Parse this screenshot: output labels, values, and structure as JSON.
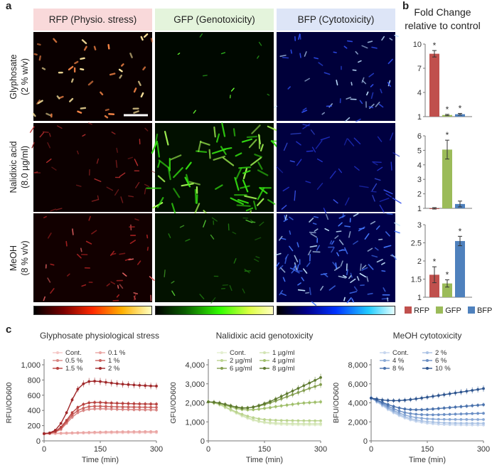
{
  "panels": {
    "a": "a",
    "b": "b",
    "c": "c"
  },
  "columns": [
    {
      "label": "RFP (Physio. stress)",
      "bg": "#f9d9da",
      "color": "#ff4444"
    },
    {
      "label": "GFP (Genotoxicity)",
      "bg": "#e4f4dc",
      "color": "#66ff33"
    },
    {
      "label": "BFP (Cytotoxicity)",
      "bg": "#dde5f7",
      "color": "#3355ff"
    }
  ],
  "rows": [
    {
      "label_line1": "Glyphosate",
      "label_line2": "(2 % w/v)"
    },
    {
      "label_line1": "Nalidixic acid",
      "label_line2": "(8.0 µg/ml)"
    },
    {
      "label_line1": "MeOH",
      "label_line2": "(8 % v/v)"
    }
  ],
  "fold_change": {
    "title_line1": "Fold Change",
    "title_line2": "relative to control",
    "legend": [
      "RFP",
      "GFP",
      "BFP"
    ],
    "colors": {
      "RFP": "#c0504d",
      "GFP": "#9bbb59",
      "BFP": "#4f81bd"
    }
  },
  "line_panels": {
    "y_labels": [
      "RFU/OD600",
      "GFU/OD600",
      "BFU/OD600"
    ]
  },
  "chart_data": [
    {
      "type": "bar",
      "categories": [
        "RFP",
        "GFP",
        "BFP"
      ],
      "values": [
        8.8,
        1.2,
        1.3
      ],
      "errors": [
        0.4,
        0.08,
        0.1
      ],
      "significant": [
        true,
        true,
        true
      ],
      "ylim": [
        1,
        10
      ],
      "yticks": [
        1,
        4,
        7,
        10
      ],
      "row": "Glyphosate"
    },
    {
      "type": "bar",
      "categories": [
        "RFP",
        "GFP",
        "BFP"
      ],
      "values": [
        1.0,
        5.05,
        1.3
      ],
      "errors": [
        0.05,
        0.65,
        0.2
      ],
      "significant": [
        false,
        true,
        false
      ],
      "ylim": [
        1,
        6
      ],
      "yticks": [
        1,
        2,
        3,
        4,
        5,
        6
      ],
      "row": "Nalidixic acid"
    },
    {
      "type": "bar",
      "categories": [
        "RFP",
        "GFP",
        "BFP"
      ],
      "values": [
        1.62,
        1.38,
        2.55
      ],
      "errors": [
        0.22,
        0.1,
        0.13
      ],
      "significant": [
        true,
        true,
        true
      ],
      "ylim": [
        1,
        3
      ],
      "yticks": [
        1,
        1.5,
        2,
        2.5,
        3
      ],
      "row": "MeOH"
    },
    {
      "type": "line",
      "title": "Glyphosate physiological stress",
      "xlabel": "Time (min)",
      "ylabel": "RFU/OD600",
      "xlim": [
        0,
        300
      ],
      "xticks": [
        0,
        150,
        300
      ],
      "ylim": [
        0,
        1000
      ],
      "yticks": [
        0,
        200,
        400,
        600,
        800,
        1000
      ],
      "ytick_labels": [
        "0",
        "200",
        "400",
        "600",
        "800",
        "1,000"
      ],
      "x": [
        0,
        15,
        30,
        45,
        60,
        75,
        90,
        105,
        120,
        135,
        150,
        165,
        180,
        195,
        210,
        225,
        240,
        255,
        270,
        285,
        300
      ],
      "series": [
        {
          "name": "Cont.",
          "color": "#f4c7c6",
          "values": [
            90,
            92,
            93,
            95,
            96,
            98,
            100,
            101,
            102,
            103,
            104,
            105,
            105,
            106,
            106,
            107,
            107,
            107,
            108,
            108,
            108
          ]
        },
        {
          "name": "0.1 %",
          "color": "#eaa5a3",
          "values": [
            95,
            97,
            100,
            102,
            104,
            106,
            108,
            110,
            112,
            114,
            115,
            117,
            118,
            119,
            120,
            120,
            121,
            121,
            122,
            122,
            122
          ]
        },
        {
          "name": "0.5 %",
          "color": "#d98583",
          "values": [
            95,
            100,
            115,
            150,
            230,
            310,
            370,
            400,
            415,
            420,
            422,
            420,
            418,
            415,
            413,
            412,
            410,
            410,
            408,
            408,
            406
          ]
        },
        {
          "name": "1 %",
          "color": "#c9605d",
          "values": [
            95,
            100,
            118,
            160,
            250,
            340,
            400,
            430,
            450,
            455,
            455,
            452,
            450,
            448,
            446,
            445,
            444,
            443,
            442,
            441,
            440
          ]
        },
        {
          "name": "1.5 %",
          "color": "#b8413e",
          "values": [
            95,
            102,
            125,
            180,
            270,
            370,
            440,
            480,
            500,
            505,
            505,
            500,
            497,
            494,
            492,
            490,
            488,
            486,
            485,
            484,
            483
          ]
        },
        {
          "name": "2 %",
          "color": "#a0282a",
          "values": [
            95,
            105,
            140,
            230,
            370,
            540,
            680,
            750,
            780,
            785,
            780,
            770,
            760,
            752,
            745,
            740,
            735,
            730,
            726,
            722,
            720
          ]
        }
      ]
    },
    {
      "type": "line",
      "title": "Nalidixic acid genotoxicity",
      "xlabel": "Time (min)",
      "ylabel": "GFU/OD600",
      "xlim": [
        0,
        300
      ],
      "xticks": [
        0,
        150,
        300
      ],
      "ylim": [
        0,
        4000
      ],
      "yticks": [
        0,
        1000,
        2000,
        3000,
        4000
      ],
      "ytick_labels": [
        "0",
        "1,000",
        "2,000",
        "3,000",
        "4,000"
      ],
      "x": [
        0,
        15,
        30,
        45,
        60,
        75,
        90,
        105,
        120,
        135,
        150,
        165,
        180,
        195,
        210,
        225,
        240,
        255,
        270,
        285,
        300
      ],
      "series": [
        {
          "name": "Cont.",
          "color": "#e3efd0",
          "values": [
            2050,
            2000,
            1900,
            1750,
            1600,
            1450,
            1300,
            1180,
            1080,
            1000,
            950,
            910,
            880,
            860,
            850,
            845,
            840,
            838,
            836,
            835,
            835
          ]
        },
        {
          "name": "1 µg/ml",
          "color": "#d2e4b3",
          "values": [
            2050,
            2000,
            1910,
            1770,
            1620,
            1480,
            1340,
            1220,
            1120,
            1040,
            990,
            960,
            940,
            925,
            915,
            910,
            905,
            902,
            900,
            900,
            900
          ]
        },
        {
          "name": "2 µg/ml",
          "color": "#bbd48f",
          "values": [
            2050,
            2000,
            1920,
            1790,
            1650,
            1520,
            1400,
            1300,
            1220,
            1160,
            1120,
            1100,
            1085,
            1075,
            1070,
            1065,
            1062,
            1060,
            1058,
            1057,
            1056
          ]
        },
        {
          "name": "4 µg/ml",
          "color": "#a0bf6b",
          "values": [
            2050,
            2020,
            1960,
            1870,
            1780,
            1700,
            1650,
            1630,
            1640,
            1670,
            1710,
            1750,
            1800,
            1840,
            1880,
            1920,
            1960,
            1990,
            2010,
            2030,
            2050
          ]
        },
        {
          "name": "6 µg/ml",
          "color": "#839e4e",
          "values": [
            2050,
            2030,
            1990,
            1920,
            1850,
            1780,
            1740,
            1740,
            1770,
            1830,
            1910,
            2000,
            2100,
            2210,
            2320,
            2430,
            2540,
            2650,
            2760,
            2860,
            2960
          ]
        },
        {
          "name": "8 µg/ml",
          "color": "#5e7a30",
          "values": [
            2050,
            2030,
            1990,
            1920,
            1840,
            1770,
            1720,
            1730,
            1780,
            1860,
            1960,
            2070,
            2200,
            2340,
            2480,
            2620,
            2760,
            2900,
            3040,
            3180,
            3330
          ]
        }
      ]
    },
    {
      "type": "line",
      "title": "MeOH cytotoxicity",
      "xlabel": "Time (min)",
      "ylabel": "BFU/OD600",
      "xlim": [
        0,
        300
      ],
      "xticks": [
        0,
        150,
        300
      ],
      "ylim": [
        0,
        8000
      ],
      "yticks": [
        0,
        2000,
        4000,
        6000,
        8000
      ],
      "ytick_labels": [
        "0",
        "2,000",
        "4,000",
        "6,000",
        "8,000"
      ],
      "x": [
        0,
        15,
        30,
        45,
        60,
        75,
        90,
        105,
        120,
        135,
        150,
        165,
        180,
        195,
        210,
        225,
        240,
        255,
        270,
        285,
        300
      ],
      "series": [
        {
          "name": "Cont.",
          "color": "#c6d6ee",
          "values": [
            4500,
            4100,
            3700,
            3300,
            2950,
            2650,
            2400,
            2200,
            2050,
            1950,
            1850,
            1800,
            1750,
            1720,
            1700,
            1690,
            1680,
            1675,
            1670,
            1668,
            1665
          ]
        },
        {
          "name": "2 %",
          "color": "#aac2e4",
          "values": [
            4500,
            4150,
            3780,
            3400,
            3060,
            2770,
            2530,
            2340,
            2200,
            2100,
            2020,
            1970,
            1930,
            1900,
            1880,
            1870,
            1860,
            1855,
            1850,
            1848,
            1845
          ]
        },
        {
          "name": "4 %",
          "color": "#8aa9d6",
          "values": [
            4500,
            4200,
            3850,
            3500,
            3200,
            2930,
            2720,
            2560,
            2450,
            2380,
            2320,
            2290,
            2270,
            2260,
            2255,
            2250,
            2248,
            2246,
            2245,
            2244,
            2243
          ]
        },
        {
          "name": "6 %",
          "color": "#6b8fc5",
          "values": [
            4500,
            4250,
            3950,
            3650,
            3380,
            3150,
            2980,
            2870,
            2800,
            2760,
            2740,
            2740,
            2750,
            2770,
            2790,
            2810,
            2830,
            2850,
            2870,
            2885,
            2900
          ]
        },
        {
          "name": "8 %",
          "color": "#4a72ad",
          "values": [
            4500,
            4300,
            4050,
            3820,
            3620,
            3460,
            3350,
            3290,
            3270,
            3280,
            3310,
            3350,
            3400,
            3450,
            3500,
            3550,
            3600,
            3650,
            3700,
            3750,
            3800
          ]
        },
        {
          "name": "10 %",
          "color": "#2f5690",
          "values": [
            4500,
            4400,
            4300,
            4250,
            4230,
            4240,
            4280,
            4340,
            4420,
            4500,
            4590,
            4680,
            4770,
            4860,
            4950,
            5040,
            5130,
            5220,
            5310,
            5400,
            5500
          ]
        }
      ]
    }
  ]
}
